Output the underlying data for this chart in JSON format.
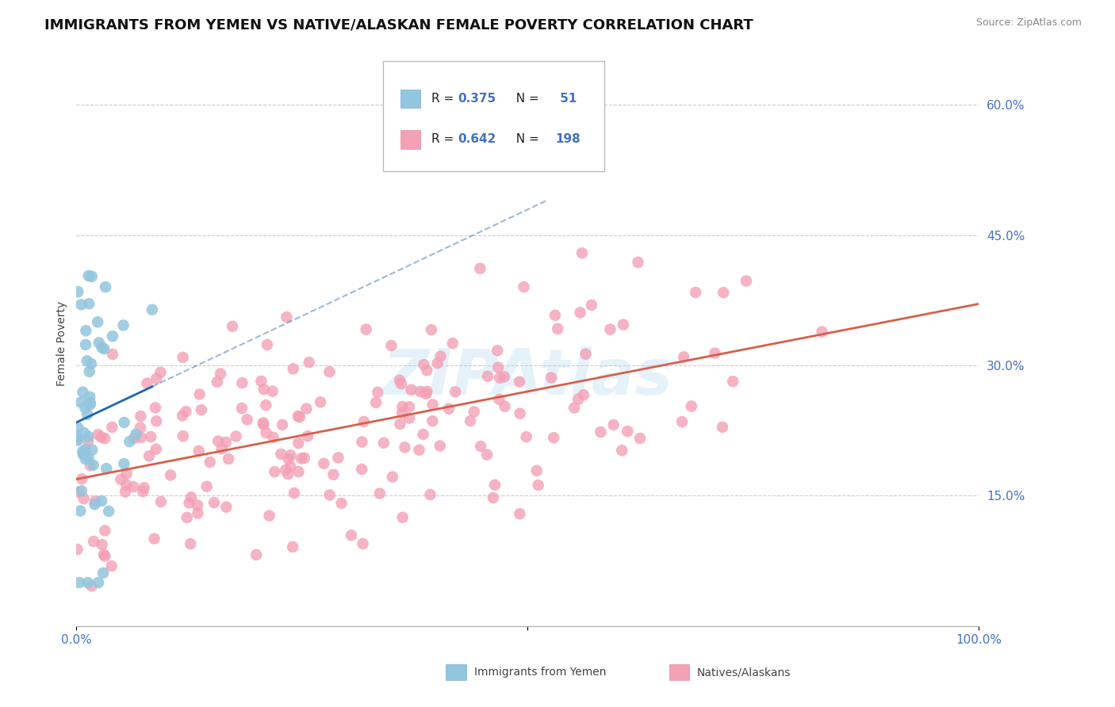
{
  "title": "IMMIGRANTS FROM YEMEN VS NATIVE/ALASKAN FEMALE POVERTY CORRELATION CHART",
  "source": "Source: ZipAtlas.com",
  "ylabel": "Female Poverty",
  "xlim": [
    0.0,
    1.0
  ],
  "ylim": [
    0.0,
    0.65
  ],
  "ytick_vals": [
    0.15,
    0.3,
    0.45,
    0.6
  ],
  "ytick_labels": [
    "15.0%",
    "30.0%",
    "45.0%",
    "60.0%"
  ],
  "xtick_vals": [
    0.0,
    0.5,
    1.0
  ],
  "xtick_labels": [
    "0.0%",
    "",
    "100.0%"
  ],
  "legend_r1": "0.375",
  "legend_n1": "51",
  "legend_r2": "0.642",
  "legend_n2": "198",
  "blue_color": "#92c5de",
  "pink_color": "#f4a0b5",
  "blue_line_color": "#2166ac",
  "pink_line_color": "#d6604d",
  "background_color": "#ffffff",
  "grid_color": "#cccccc",
  "watermark": "ZIPAtlas",
  "title_fontsize": 13,
  "axis_label_fontsize": 10,
  "tick_fontsize": 11,
  "tick_color": "#4472c4",
  "n_blue": 51,
  "n_pink": 198,
  "r_blue": 0.375,
  "r_pink": 0.642
}
